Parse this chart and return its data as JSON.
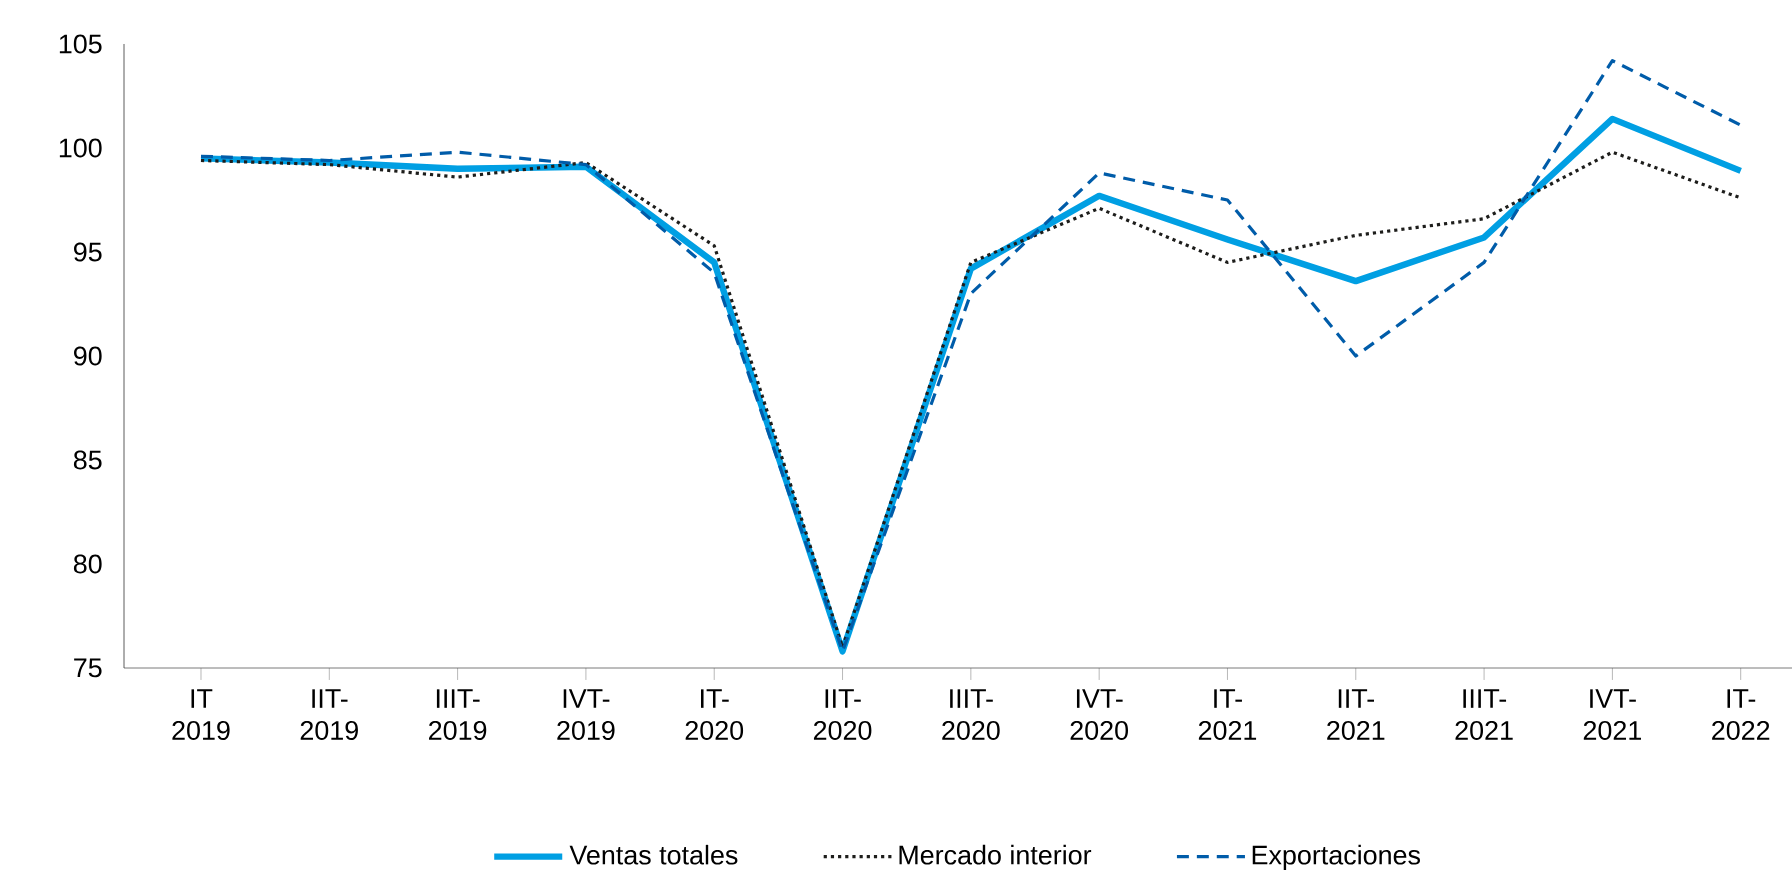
{
  "chart_data": {
    "type": "line",
    "categories": [
      "IT 2019",
      "IIT- 2019",
      "IIIT- 2019",
      "IVT- 2019",
      "IT- 2020",
      "IIT- 2020",
      "IIIT- 2020",
      "IVT- 2020",
      "IT- 2021",
      "IIT- 2021",
      "IIIT- 2021",
      "IVT- 2021",
      "IT- 2022"
    ],
    "series": [
      {
        "name": "Ventas totales",
        "color": "#009fe3",
        "line_style": "solid",
        "values": [
          99.5,
          99.3,
          99.0,
          99.1,
          94.5,
          75.8,
          94.2,
          97.7,
          95.6,
          93.6,
          95.7,
          101.4,
          98.9
        ]
      },
      {
        "name": "Mercado interior",
        "color": "#1d1d1b",
        "line_style": "dotted",
        "values": [
          99.4,
          99.2,
          98.6,
          99.3,
          95.3,
          76.0,
          94.5,
          97.1,
          94.5,
          95.8,
          96.6,
          99.8,
          97.6
        ]
      },
      {
        "name": "Exportaciones",
        "color": "#005ca9",
        "line_style": "dashed",
        "values": [
          99.6,
          99.4,
          99.8,
          99.2,
          94.0,
          75.8,
          93.0,
          98.8,
          97.5,
          90.0,
          94.5,
          104.2,
          101.1
        ]
      }
    ],
    "ylim": [
      75,
      105
    ],
    "yticks": [
      75,
      80,
      85,
      90,
      95,
      100,
      105
    ],
    "grid": false,
    "legend": "bottom",
    "marker": "none"
  }
}
